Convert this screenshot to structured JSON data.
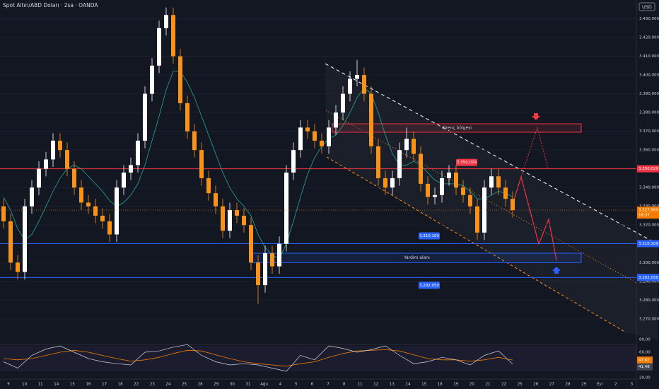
{
  "chart_data": {
    "type": "candlestick",
    "title": "Spot Altın/ABD Doları · 2sa · OANDA",
    "currency": "USD",
    "ylim": [
      3259,
      3440
    ],
    "yticks": [
      {
        "value": 3270,
        "label": "3.270,000"
      },
      {
        "value": 3280,
        "label": "3.280,000"
      },
      {
        "value": 3290,
        "label": "3.290,000"
      },
      {
        "value": 3300,
        "label": "3.300,000"
      },
      {
        "value": 3320,
        "label": "3.320,000"
      },
      {
        "value": 3330,
        "label": "3.330,000"
      },
      {
        "value": 3340,
        "label": "3.340,000"
      },
      {
        "value": 3360,
        "label": "3.360,000"
      },
      {
        "value": 3370,
        "label": "3.370,000"
      },
      {
        "value": 3380,
        "label": "3.380,000"
      },
      {
        "value": 3390,
        "label": "3.390,000"
      },
      {
        "value": 3400,
        "label": "3.400,000"
      },
      {
        "value": 3410,
        "label": "3.410,000"
      },
      {
        "value": 3420,
        "label": "3.420,000"
      },
      {
        "value": 3430,
        "label": "3.430,000"
      }
    ],
    "xaxis_labels": [
      "9",
      "10",
      "11",
      "14",
      "15",
      "16",
      "17",
      "18",
      "22",
      "23",
      "24",
      "25",
      "28",
      "29",
      "30",
      "31",
      "Ağu",
      "4",
      "5",
      "6",
      "7",
      "8",
      "11",
      "12",
      "13",
      "14",
      "15",
      "18",
      "19",
      "20",
      "21",
      "22",
      "25",
      "26",
      "27",
      "28",
      "29",
      "Eyl",
      "2",
      "3"
    ],
    "up_color": "#ffffff",
    "down_color": "#f7931a",
    "candles": [
      [
        3330,
        3334,
        3318,
        3322
      ],
      [
        3322,
        3326,
        3296,
        3300
      ],
      [
        3300,
        3304,
        3291,
        3295
      ],
      [
        3295,
        3334,
        3291,
        3330
      ],
      [
        3330,
        3344,
        3326,
        3340
      ],
      [
        3340,
        3354,
        3336,
        3350
      ],
      [
        3350,
        3359,
        3346,
        3355
      ],
      [
        3355,
        3369,
        3351,
        3365
      ],
      [
        3365,
        3369,
        3356,
        3360
      ],
      [
        3360,
        3364,
        3346,
        3350
      ],
      [
        3350,
        3354,
        3336,
        3340
      ],
      [
        3340,
        3344,
        3328,
        3332
      ],
      [
        3332,
        3336,
        3326,
        3330
      ],
      [
        3330,
        3334,
        3321,
        3325
      ],
      [
        3325,
        3329,
        3318,
        3322
      ],
      [
        3322,
        3326,
        3311,
        3315
      ],
      [
        3315,
        3344,
        3311,
        3340
      ],
      [
        3340,
        3352,
        3336,
        3348
      ],
      [
        3348,
        3356,
        3344,
        3352
      ],
      [
        3352,
        3369,
        3348,
        3365
      ],
      [
        3365,
        3394,
        3361,
        3390
      ],
      [
        3390,
        3409,
        3386,
        3405
      ],
      [
        3405,
        3429,
        3401,
        3425
      ],
      [
        3425,
        3436,
        3421,
        3432
      ],
      [
        3432,
        3436,
        3406,
        3410
      ],
      [
        3410,
        3414,
        3381,
        3385
      ],
      [
        3385,
        3389,
        3366,
        3370
      ],
      [
        3370,
        3374,
        3356,
        3360
      ],
      [
        3360,
        3364,
        3341,
        3345
      ],
      [
        3345,
        3349,
        3333,
        3337
      ],
      [
        3337,
        3341,
        3326,
        3330
      ],
      [
        3330,
        3334,
        3313,
        3317
      ],
      [
        3317,
        3332,
        3313,
        3328
      ],
      [
        3328,
        3332,
        3321,
        3325
      ],
      [
        3325,
        3329,
        3316,
        3320
      ],
      [
        3320,
        3324,
        3296,
        3300
      ],
      [
        3300,
        3304,
        3278,
        3288
      ],
      [
        3288,
        3309,
        3284,
        3305
      ],
      [
        3305,
        3309,
        3294,
        3298
      ],
      [
        3298,
        3314,
        3294,
        3310
      ],
      [
        3310,
        3352,
        3306,
        3348
      ],
      [
        3348,
        3364,
        3344,
        3360
      ],
      [
        3360,
        3376,
        3356,
        3372
      ],
      [
        3372,
        3376,
        3366,
        3370
      ],
      [
        3370,
        3374,
        3361,
        3365
      ],
      [
        3365,
        3369,
        3358,
        3362
      ],
      [
        3362,
        3376,
        3358,
        3372
      ],
      [
        3372,
        3384,
        3368,
        3380
      ],
      [
        3380,
        3394,
        3376,
        3390
      ],
      [
        3390,
        3402,
        3386,
        3398
      ],
      [
        3398,
        3408,
        3394,
        3400
      ],
      [
        3400,
        3404,
        3386,
        3390
      ],
      [
        3390,
        3394,
        3358,
        3362
      ],
      [
        3362,
        3366,
        3341,
        3345
      ],
      [
        3345,
        3349,
        3336,
        3340
      ],
      [
        3340,
        3349,
        3336,
        3345
      ],
      [
        3345,
        3364,
        3341,
        3360
      ],
      [
        3360,
        3372,
        3356,
        3366
      ],
      [
        3366,
        3370,
        3354,
        3358
      ],
      [
        3358,
        3362,
        3338,
        3342
      ],
      [
        3342,
        3346,
        3331,
        3335
      ],
      [
        3335,
        3340,
        3331,
        3336
      ],
      [
        3336,
        3349,
        3332,
        3345
      ],
      [
        3345,
        3352,
        3341,
        3348
      ],
      [
        3348,
        3352,
        3336,
        3340
      ],
      [
        3340,
        3344,
        3332,
        3336
      ],
      [
        3336,
        3340,
        3326,
        3330
      ],
      [
        3330,
        3334,
        3312,
        3316
      ],
      [
        3316,
        3344,
        3312,
        3340
      ],
      [
        3340,
        3350,
        3336,
        3346
      ],
      [
        3346,
        3350,
        3336,
        3340
      ],
      [
        3340,
        3344,
        3330,
        3334
      ],
      [
        3334,
        3338,
        3324,
        3328
      ]
    ],
    "ma": {
      "color": "#26a69a",
      "values": [
        3335,
        3328,
        3318,
        3312,
        3315,
        3322,
        3330,
        3338,
        3345,
        3350,
        3352,
        3350,
        3346,
        3342,
        3338,
        3333,
        3330,
        3332,
        3336,
        3342,
        3352,
        3365,
        3378,
        3392,
        3402,
        3402,
        3396,
        3388,
        3378,
        3368,
        3358,
        3348,
        3340,
        3334,
        3330,
        3325,
        3315,
        3308,
        3304,
        3302,
        3310,
        3322,
        3335,
        3347,
        3356,
        3362,
        3366,
        3368,
        3373,
        3380,
        3388,
        3393,
        3390,
        3380,
        3368,
        3358,
        3352,
        3352,
        3354,
        3352,
        3348,
        3344,
        3342,
        3342,
        3342,
        3341,
        3338,
        3334,
        3334,
        3336,
        3338,
        3337,
        3335
      ]
    },
    "levels": [
      {
        "value": 3350.029,
        "label": "3.350,029",
        "color": "#f23645"
      },
      {
        "value": 3310.109,
        "label": "3.310,109",
        "color": "#2962ff"
      },
      {
        "value": 3292.05,
        "label": "3.292,050",
        "color": "#2962ff"
      }
    ],
    "current": {
      "value": 3327.969,
      "label": "3.327,969",
      "time": "16:37",
      "color": "#f57c00"
    },
    "zones": [
      {
        "label": "direnç bölgesi",
        "top": 3374,
        "bottom": 3369.5,
        "color": "#f23645"
      },
      {
        "label": "Yardım alanı",
        "top": 3305,
        "bottom": 3300,
        "color": "#2962ff"
      }
    ],
    "rsi": {
      "ylim": [
        20,
        80
      ],
      "yticks": [
        {
          "value": 80,
          "label": "80,00"
        },
        {
          "value": 60,
          "label": "60,00"
        },
        {
          "value": 40,
          "label": "40,00"
        },
        {
          "value": 20,
          "label": "20,00"
        }
      ],
      "band": [
        30,
        70
      ],
      "color": "#d1d4dc",
      "values": [
        45,
        35,
        55,
        65,
        70,
        60,
        50,
        45,
        42,
        40,
        60,
        62,
        68,
        72,
        55,
        45,
        40,
        42,
        40,
        35,
        30,
        55,
        48,
        70,
        66,
        60,
        64,
        70,
        55,
        42,
        45,
        52,
        48,
        40,
        55,
        62,
        41.48
      ],
      "last_label": "41,48",
      "ma": {
        "color": "#f57c00",
        "values": [
          50,
          48,
          50,
          55,
          60,
          63,
          60,
          55,
          50,
          46,
          48,
          52,
          58,
          63,
          62,
          56,
          50,
          45,
          42,
          40,
          38,
          42,
          45,
          52,
          58,
          62,
          63,
          64,
          62,
          56,
          50,
          48,
          48,
          46,
          48,
          52,
          47.62
        ],
        "last_label": "47,62"
      }
    }
  }
}
